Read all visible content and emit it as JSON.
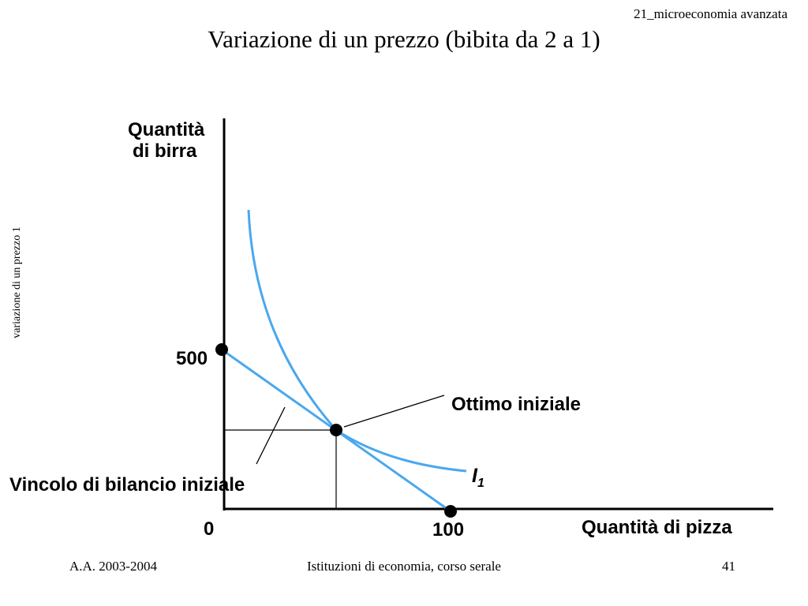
{
  "header": {
    "course_tag": "21_microeconomia avanzata",
    "title": "Variazione di un prezzo (bibita da 2 a 1)"
  },
  "side_note": "variazione di un prezzo 1",
  "diagram": {
    "y_axis_label_line1": "Quantità",
    "y_axis_label_line2": "di birra",
    "x_axis_label": "Quantità di pizza",
    "origin_label": "0",
    "y_intercept_label": "500",
    "x_intercept_label": "100",
    "optimum_label": "Ottimo iniziale",
    "budget_label": "Vincolo di bilancio iniziale",
    "curve_label": "I",
    "curve_label_sub": "1",
    "curve_color": "#4aa8ee"
  },
  "footer": {
    "left": "A.A. 2003-2004",
    "center": "Istituzioni di economia, corso serale",
    "right": "41"
  }
}
